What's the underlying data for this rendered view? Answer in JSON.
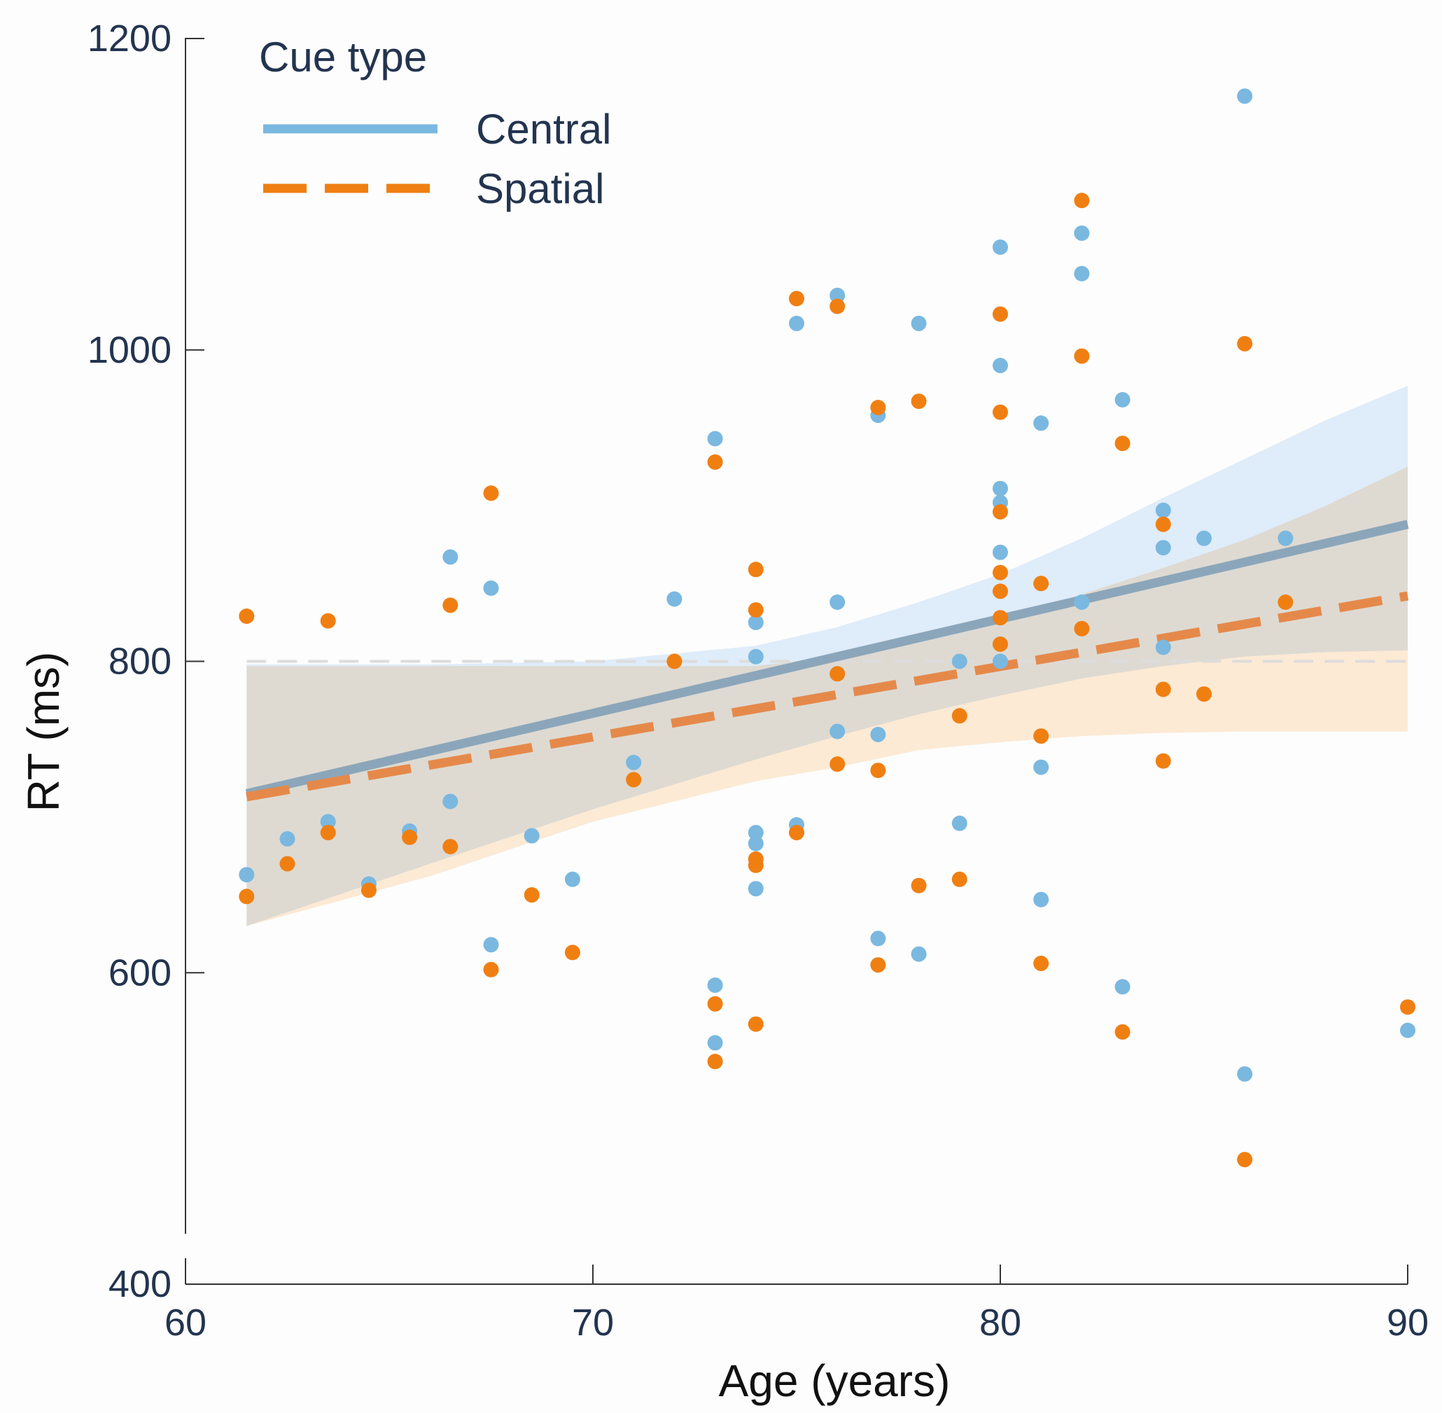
{
  "chart_data": {
    "type": "scatter",
    "xlabel": "Age (years)",
    "ylabel": "RT (ms)",
    "xlim": [
      60,
      90
    ],
    "ylim": [
      400,
      1200
    ],
    "xticks": [
      60,
      70,
      80,
      90
    ],
    "yticks": [
      400,
      600,
      800,
      1000,
      1200
    ],
    "reference_line_y": 800,
    "legend": {
      "title": "Cue type",
      "position": "top-left"
    },
    "series": [
      {
        "name": "Central",
        "line_style": "solid",
        "color": "#7ab8e0",
        "line_color": "#8ba6ba",
        "band_color": "#dcebfa",
        "fit": {
          "x": [
            61.5,
            90
          ],
          "y": [
            715,
            888
          ]
        },
        "band": {
          "x": [
            61.5,
            66,
            70,
            74,
            76,
            78,
            80,
            82,
            84,
            86,
            88,
            90
          ],
          "lower": [
            630,
            670,
            705,
            737,
            752,
            766,
            778,
            789,
            797,
            803,
            806,
            807
          ],
          "upper": [
            798,
            798,
            800,
            810,
            822,
            838,
            856,
            879,
            905,
            930,
            955,
            977
          ]
        },
        "points": [
          [
            61.5,
            663
          ],
          [
            62.5,
            686
          ],
          [
            63.5,
            697
          ],
          [
            64.5,
            657
          ],
          [
            65.5,
            691
          ],
          [
            66.5,
            867
          ],
          [
            66.5,
            710
          ],
          [
            67.5,
            847
          ],
          [
            67.5,
            618
          ],
          [
            68.5,
            688
          ],
          [
            69.5,
            660
          ],
          [
            71,
            735
          ],
          [
            72,
            840
          ],
          [
            73,
            943
          ],
          [
            73,
            592
          ],
          [
            73,
            555
          ],
          [
            74,
            825
          ],
          [
            74,
            803
          ],
          [
            74,
            690
          ],
          [
            74,
            683
          ],
          [
            74,
            654
          ],
          [
            75,
            1017
          ],
          [
            75,
            695
          ],
          [
            76,
            1035
          ],
          [
            76,
            838
          ],
          [
            76,
            755
          ],
          [
            77,
            958
          ],
          [
            77,
            622
          ],
          [
            77,
            753
          ],
          [
            78,
            1017
          ],
          [
            78,
            612
          ],
          [
            79,
            800
          ],
          [
            79,
            696
          ],
          [
            80,
            1066
          ],
          [
            80,
            990
          ],
          [
            80,
            911
          ],
          [
            80,
            902
          ],
          [
            80,
            870
          ],
          [
            80,
            800
          ],
          [
            81,
            953
          ],
          [
            81,
            732
          ],
          [
            81,
            647
          ],
          [
            82,
            1075
          ],
          [
            82,
            1049
          ],
          [
            82,
            838
          ],
          [
            83,
            968
          ],
          [
            83,
            591
          ],
          [
            84,
            897
          ],
          [
            84,
            873
          ],
          [
            84,
            809
          ],
          [
            85,
            879
          ],
          [
            86,
            1163
          ],
          [
            86,
            535
          ],
          [
            87,
            879
          ],
          [
            90,
            563
          ]
        ]
      },
      {
        "name": "Spatial",
        "line_style": "dashed",
        "color": "#f07f12",
        "line_color": "#e5894a",
        "band_color": "#fde5ca",
        "fit": {
          "x": [
            61.5,
            90
          ],
          "y": [
            713,
            842
          ]
        },
        "band": {
          "x": [
            61.5,
            66,
            70,
            74,
            76,
            78,
            80,
            82,
            84,
            86,
            88,
            90
          ],
          "lower": [
            630,
            662,
            697,
            723,
            732,
            743,
            748,
            752,
            754,
            755,
            755,
            755
          ],
          "upper": [
            797,
            797,
            797,
            797,
            803,
            812,
            826,
            843,
            860,
            878,
            900,
            925
          ]
        },
        "points": [
          [
            61.5,
            829
          ],
          [
            61.5,
            649
          ],
          [
            62.5,
            670
          ],
          [
            63.5,
            826
          ],
          [
            63.5,
            690
          ],
          [
            64.5,
            653
          ],
          [
            65.5,
            687
          ],
          [
            66.5,
            836
          ],
          [
            66.5,
            681
          ],
          [
            67.5,
            908
          ],
          [
            67.5,
            602
          ],
          [
            68.5,
            650
          ],
          [
            69.5,
            613
          ],
          [
            71,
            724
          ],
          [
            72,
            800
          ],
          [
            73,
            928
          ],
          [
            73,
            580
          ],
          [
            73,
            543
          ],
          [
            74,
            859
          ],
          [
            74,
            833
          ],
          [
            74,
            673
          ],
          [
            74,
            669
          ],
          [
            74,
            567
          ],
          [
            75,
            1033
          ],
          [
            75,
            690
          ],
          [
            76,
            1028
          ],
          [
            76,
            792
          ],
          [
            76,
            734
          ],
          [
            77,
            963
          ],
          [
            77,
            730
          ],
          [
            77,
            605
          ],
          [
            78,
            967
          ],
          [
            78,
            656
          ],
          [
            79,
            765
          ],
          [
            79,
            660
          ],
          [
            80,
            1023
          ],
          [
            80,
            960
          ],
          [
            80,
            896
          ],
          [
            80,
            857
          ],
          [
            80,
            845
          ],
          [
            80,
            828
          ],
          [
            80,
            811
          ],
          [
            81,
            850
          ],
          [
            81,
            752
          ],
          [
            81,
            606
          ],
          [
            82,
            1096
          ],
          [
            82,
            996
          ],
          [
            82,
            821
          ],
          [
            83,
            940
          ],
          [
            83,
            562
          ],
          [
            84,
            888
          ],
          [
            84,
            782
          ],
          [
            84,
            736
          ],
          [
            85,
            779
          ],
          [
            86,
            1004
          ],
          [
            86,
            480
          ],
          [
            87,
            838
          ],
          [
            90,
            578
          ]
        ]
      }
    ]
  }
}
